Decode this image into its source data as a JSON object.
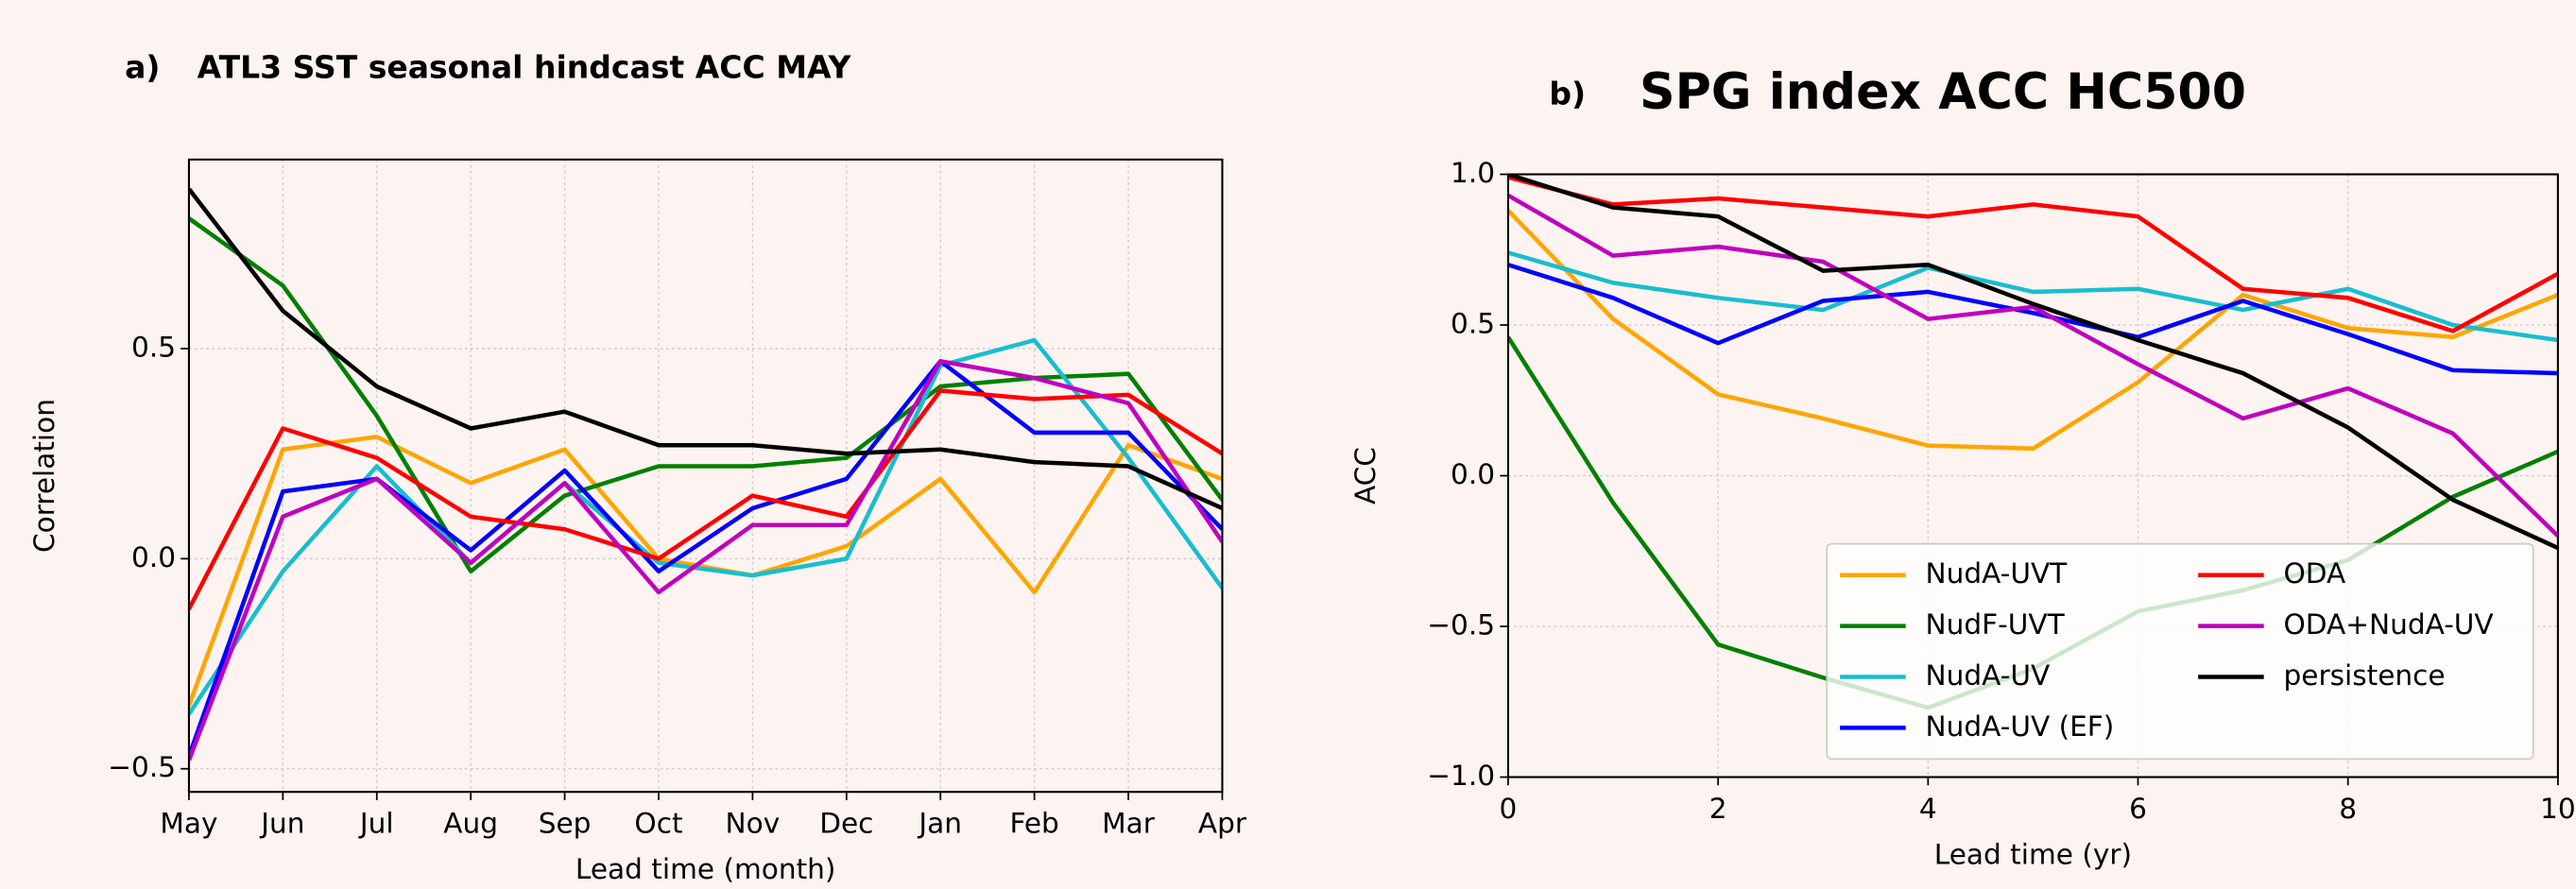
{
  "chart_data": [
    {
      "type": "line",
      "panel": "a)",
      "title": "ATL3 SST seasonal hindcast ACC MAY",
      "xlabel": "Lead time (month)",
      "ylabel": "Correlation",
      "categories": [
        "May",
        "Jun",
        "Jul",
        "Aug",
        "Sep",
        "Oct",
        "Nov",
        "Dec",
        "Jan",
        "Feb",
        "Mar",
        "Apr"
      ],
      "ylim": [
        -0.555,
        0.95
      ],
      "yticks": [
        {
          "value": -0.5,
          "label": "−0.5"
        },
        {
          "value": 0,
          "label": "0.0"
        },
        0.5
      ],
      "grid": true,
      "series": [
        {
          "color": "#ffa500",
          "values": [
            -0.35,
            0.26,
            0.29,
            0.18,
            0.26,
            0.0,
            -0.04,
            0.03,
            0.19,
            -0.08,
            0.27,
            0.19
          ]
        },
        {
          "color": "#008000",
          "values": [
            0.81,
            0.65,
            0.34,
            -0.03,
            0.15,
            0.22,
            0.22,
            0.24,
            0.41,
            0.43,
            0.44,
            0.14
          ]
        },
        {
          "color": "#17becf",
          "values": [
            -0.37,
            -0.03,
            0.22,
            -0.01,
            0.18,
            -0.01,
            -0.04,
            0.0,
            0.46,
            0.52,
            0.24,
            -0.07
          ]
        },
        {
          "color": "#0000ff",
          "values": [
            -0.47,
            0.16,
            0.19,
            0.02,
            0.21,
            -0.03,
            0.12,
            0.19,
            0.47,
            0.3,
            0.3,
            0.07
          ]
        },
        {
          "color": "#ff0000",
          "values": [
            -0.12,
            0.31,
            0.24,
            0.1,
            0.07,
            0.0,
            0.15,
            0.1,
            0.4,
            0.38,
            0.39,
            0.25
          ]
        },
        {
          "color": "#bf00bf",
          "values": [
            -0.48,
            0.1,
            0.19,
            -0.01,
            0.18,
            -0.08,
            0.08,
            0.08,
            0.47,
            0.43,
            0.37,
            0.04
          ]
        },
        {
          "color": "#000000",
          "values": [
            0.88,
            0.59,
            0.41,
            0.31,
            0.35,
            0.27,
            0.27,
            0.25,
            0.26,
            0.23,
            0.22,
            0.12
          ]
        }
      ]
    },
    {
      "type": "line",
      "panel": "b)",
      "title": "SPG index ACC HC500",
      "xlabel": "Lead time (yr)",
      "ylabel": "ACC",
      "x": [
        0,
        1,
        2,
        3,
        4,
        5,
        6,
        7,
        8,
        9,
        10
      ],
      "xlim": [
        0,
        10
      ],
      "xticks": [
        0,
        2,
        4,
        6,
        8,
        10
      ],
      "ylim": [
        -1,
        1
      ],
      "yticks": [
        {
          "value": -1,
          "label": "−1.0"
        },
        {
          "value": -0.5,
          "label": "−0.5"
        },
        {
          "value": 0,
          "label": "0.0"
        },
        {
          "value": 0.5,
          "label": "0.5"
        },
        {
          "value": 1,
          "label": "1.0"
        }
      ],
      "grid": true,
      "legend": "lower right",
      "series": [
        {
          "name": "NudA-UVT",
          "color": "#ffa500",
          "values": [
            0.88,
            0.52,
            0.27,
            0.19,
            0.1,
            0.09,
            0.31,
            0.6,
            0.49,
            0.46,
            0.6
          ]
        },
        {
          "name": "NudF-UVT",
          "color": "#008000",
          "values": [
            0.46,
            -0.09,
            -0.56,
            -0.67,
            -0.77,
            -0.64,
            -0.45,
            -0.38,
            -0.28,
            -0.07,
            0.08
          ]
        },
        {
          "name": "NudA-UV",
          "color": "#17becf",
          "values": [
            0.74,
            0.64,
            0.59,
            0.55,
            0.69,
            0.61,
            0.62,
            0.55,
            0.62,
            0.5,
            0.45
          ]
        },
        {
          "name": "NudA-UV (EF)",
          "color": "#0000ff",
          "values": [
            0.7,
            0.59,
            0.44,
            0.58,
            0.61,
            0.54,
            0.46,
            0.58,
            0.47,
            0.35,
            0.34
          ]
        },
        {
          "name": "ODA",
          "color": "#ff0000",
          "values": [
            0.99,
            0.9,
            0.92,
            0.89,
            0.86,
            0.9,
            0.86,
            0.62,
            0.59,
            0.48,
            0.67
          ]
        },
        {
          "name": "ODA+NudA-UV",
          "color": "#bf00bf",
          "values": [
            0.93,
            0.73,
            0.76,
            0.71,
            0.52,
            0.56,
            0.37,
            0.19,
            0.29,
            0.14,
            -0.2
          ]
        },
        {
          "name": "persistence",
          "color": "#000000",
          "values": [
            1.0,
            0.89,
            0.86,
            0.68,
            0.7,
            0.57,
            0.45,
            0.34,
            0.16,
            -0.08,
            -0.24
          ]
        }
      ]
    }
  ]
}
